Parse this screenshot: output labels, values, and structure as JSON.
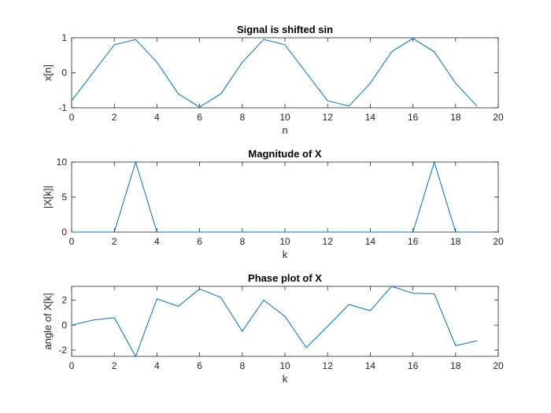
{
  "chart_data": [
    {
      "type": "line",
      "title": "Signal is shifted sin",
      "xlabel": "n",
      "ylabel": "x[n]",
      "xlim": [
        0,
        20
      ],
      "ylim": [
        -1,
        1
      ],
      "xticks": [
        "0",
        "2",
        "4",
        "6",
        "8",
        "10",
        "12",
        "14",
        "16",
        "18",
        "20"
      ],
      "yticks": [
        "-1",
        "0",
        "1"
      ],
      "color": "#0072bd",
      "x": [
        0,
        1,
        2,
        3,
        4,
        5,
        6,
        7,
        8,
        9,
        10,
        11,
        12,
        13,
        14,
        15,
        16,
        17,
        18,
        19
      ],
      "y": [
        -0.8,
        0.0,
        0.8,
        0.95,
        0.3,
        -0.6,
        -0.98,
        -0.6,
        0.3,
        0.95,
        0.8,
        0.0,
        -0.8,
        -0.95,
        -0.3,
        0.6,
        0.98,
        0.6,
        -0.3,
        -0.95
      ]
    },
    {
      "type": "line",
      "title": "Magnitude of X",
      "xlabel": "k",
      "ylabel": "|X[k]|",
      "xlim": [
        0,
        20
      ],
      "ylim": [
        0,
        10
      ],
      "xticks": [
        "0",
        "2",
        "4",
        "6",
        "8",
        "10",
        "12",
        "14",
        "16",
        "18",
        "20"
      ],
      "yticks": [
        "0",
        "5",
        "10"
      ],
      "color": "#0072bd",
      "x": [
        0,
        1,
        2,
        3,
        4,
        5,
        6,
        7,
        8,
        9,
        10,
        11,
        12,
        13,
        14,
        15,
        16,
        17,
        18,
        19
      ],
      "y": [
        0,
        0,
        0,
        10,
        0,
        0,
        0,
        0,
        0,
        0,
        0,
        0,
        0,
        0,
        0,
        0,
        0,
        10,
        0,
        0
      ]
    },
    {
      "type": "line",
      "title": "Phase plot of X",
      "xlabel": "k",
      "ylabel": "angle of X[k]",
      "xlim": [
        0,
        20
      ],
      "ylim": [
        -2.5,
        3.1
      ],
      "xticks": [
        "0",
        "2",
        "4",
        "6",
        "8",
        "10",
        "12",
        "14",
        "16",
        "18",
        "20"
      ],
      "yticks": [
        "-2",
        "0",
        "2"
      ],
      "color": "#0072bd",
      "x": [
        0,
        1,
        2,
        3,
        4,
        5,
        6,
        7,
        8,
        9,
        10,
        11,
        12,
        13,
        14,
        15,
        16,
        17,
        18,
        19
      ],
      "y": [
        0.0,
        0.4,
        0.6,
        -2.5,
        2.1,
        1.5,
        2.9,
        2.2,
        -0.5,
        2.0,
        0.7,
        -1.8,
        -0.1,
        1.65,
        1.15,
        3.1,
        2.55,
        2.5,
        -1.65,
        -1.25
      ]
    }
  ]
}
